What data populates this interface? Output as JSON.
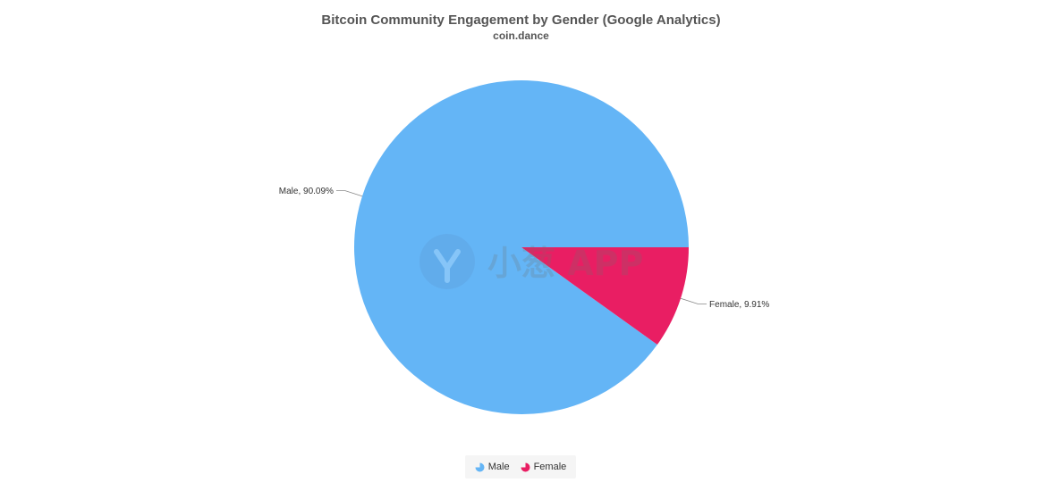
{
  "chart_data": {
    "type": "pie",
    "title": "Bitcoin Community Engagement by Gender (Google Analytics)",
    "subtitle": "coin.dance",
    "slices": [
      {
        "name": "Male",
        "value": 90.09,
        "label": "Male, 90.09%",
        "color": "#64b5f6"
      },
      {
        "name": "Female",
        "value": 9.91,
        "label": "Female, 9.91%",
        "color": "#e91e63"
      }
    ],
    "legend": {
      "position": "bottom-center",
      "items": [
        "Male",
        "Female"
      ]
    }
  },
  "watermark": {
    "text": "小葱 APP",
    "color": "#aaaaaa"
  }
}
